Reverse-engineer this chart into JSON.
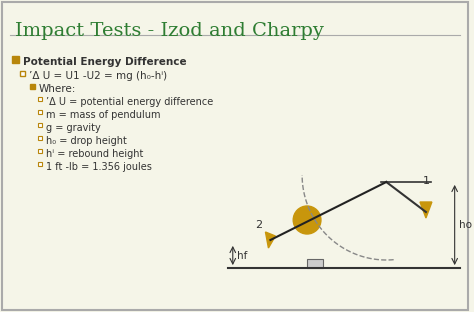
{
  "title": "Impact Tests - Izod and Charpy",
  "title_color": "#2E7D32",
  "title_fontsize": 14,
  "bg_color": "#F5F5E8",
  "border_color": "#AAAAAA",
  "bullet_color": "#B8860B",
  "text_color": "#333333",
  "bullet1": "Potential Energy Difference",
  "bullet2": "’Δ U = U1 -U2 = mg (h₀-hⁱ)",
  "bullet3": "Where:",
  "items": [
    "’Δ U = potential energy difference",
    "m = mass of pendulum",
    "g = gravity",
    "h₀ = drop height",
    "hⁱ = rebound height",
    "1 ft -lb = 1.356 joules"
  ],
  "pendulum_color": "#C8960C",
  "dashed_color": "#888888",
  "line_color": "#222222"
}
